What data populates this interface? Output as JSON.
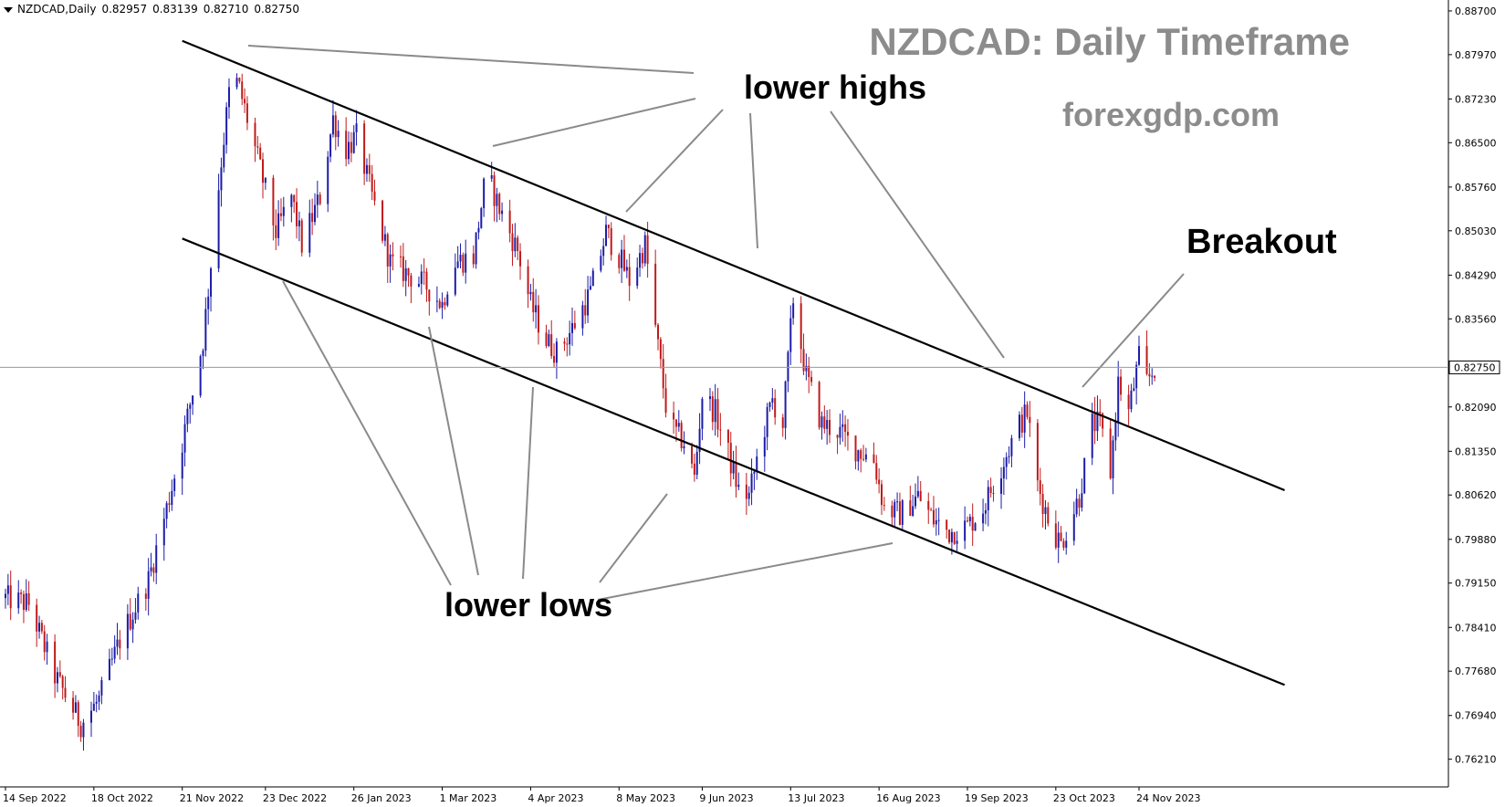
{
  "header": {
    "symbol": "NZDCAD,Daily",
    "open": "0.82957",
    "high": "0.83139",
    "low": "0.82710",
    "close": "0.82750"
  },
  "texts": {
    "title": "NZDCAD: Daily Timeframe",
    "site": "forexgdp.com",
    "lower_highs": "lower highs",
    "lower_lows": "lower lows",
    "breakout": "Breakout"
  },
  "colors": {
    "bull": "#1c1ca8",
    "bear": "#c01a1a",
    "channel": "#000000",
    "pointer": "#8a8a8a",
    "current_line": "#9a9a9a",
    "title_gray": "#8c8c8c"
  },
  "chart_data": {
    "type": "candlestick",
    "symbol": "NZDCAD",
    "timeframe": "Daily",
    "current_price": "0.82750",
    "y_ticks": [
      "0.88700",
      "0.87970",
      "0.87230",
      "0.86500",
      "0.85760",
      "0.85030",
      "0.84290",
      "0.83560",
      "0.82750",
      "0.82090",
      "0.81350",
      "0.80620",
      "0.79880",
      "0.79150",
      "0.78410",
      "0.77680",
      "0.76940",
      "0.76210"
    ],
    "ylim": [
      0.759,
      0.8876
    ],
    "x_ticks": [
      "14 Sep 2022",
      "18 Oct 2022",
      "21 Nov 2022",
      "23 Dec 2022",
      "26 Jan 2023",
      "1 Mar 2023",
      "4 Apr 2023",
      "8 May 2023",
      "9 Jun 2023",
      "13 Jul 2023",
      "16 Aug 2023",
      "19 Sep 2023",
      "23 Oct 2023",
      "24 Nov 2023"
    ],
    "channel_upper": [
      {
        "date": "2022-11-21",
        "price": 0.882
      },
      {
        "date": "2024-01-19",
        "price": 0.807
      }
    ],
    "channel_lower": [
      {
        "date": "2022-11-21",
        "price": 0.849
      },
      {
        "date": "2024-01-19",
        "price": 0.7745
      }
    ],
    "price_path": [
      [
        "2022-09-14",
        0.789
      ],
      [
        "2022-09-23",
        0.788
      ],
      [
        "2022-10-03",
        0.776
      ],
      [
        "2022-10-13",
        0.768
      ],
      [
        "2022-10-20",
        0.772
      ],
      [
        "2022-10-28",
        0.782
      ],
      [
        "2022-11-08",
        0.792
      ],
      [
        "2022-11-15",
        0.804
      ],
      [
        "2022-11-21",
        0.815
      ],
      [
        "2022-11-29",
        0.832
      ],
      [
        "2022-12-06",
        0.862
      ],
      [
        "2022-12-10",
        0.877
      ],
      [
        "2022-12-13",
        0.874
      ],
      [
        "2022-12-19",
        0.864
      ],
      [
        "2022-12-27",
        0.85
      ],
      [
        "2023-01-02",
        0.856
      ],
      [
        "2023-01-06",
        0.848
      ],
      [
        "2023-01-13",
        0.856
      ],
      [
        "2023-01-18",
        0.869
      ],
      [
        "2023-01-23",
        0.864
      ],
      [
        "2023-01-27",
        0.866
      ],
      [
        "2023-02-02",
        0.856
      ],
      [
        "2023-02-09",
        0.845
      ],
      [
        "2023-02-16",
        0.843
      ],
      [
        "2023-02-23",
        0.841
      ],
      [
        "2023-03-01",
        0.838
      ],
      [
        "2023-03-05",
        0.845
      ],
      [
        "2023-03-13",
        0.846
      ],
      [
        "2023-03-18",
        0.86
      ],
      [
        "2023-03-23",
        0.854
      ],
      [
        "2023-03-30",
        0.847
      ],
      [
        "2023-04-04",
        0.838
      ],
      [
        "2023-04-10",
        0.832
      ],
      [
        "2023-04-14",
        0.83
      ],
      [
        "2023-04-20",
        0.834
      ],
      [
        "2023-04-27",
        0.84
      ],
      [
        "2023-05-03",
        0.85
      ],
      [
        "2023-05-08",
        0.846
      ],
      [
        "2023-05-12",
        0.842
      ],
      [
        "2023-05-18",
        0.848
      ],
      [
        "2023-05-22",
        0.834
      ],
      [
        "2023-05-27",
        0.818
      ],
      [
        "2023-06-02",
        0.815
      ],
      [
        "2023-06-06",
        0.809
      ],
      [
        "2023-06-09",
        0.823
      ],
      [
        "2023-06-14",
        0.82
      ],
      [
        "2023-06-19",
        0.813
      ],
      [
        "2023-06-23",
        0.807
      ],
      [
        "2023-06-27",
        0.806
      ],
      [
        "2023-07-02",
        0.816
      ],
      [
        "2023-07-06",
        0.822
      ],
      [
        "2023-07-10",
        0.818
      ],
      [
        "2023-07-14",
        0.839
      ],
      [
        "2023-07-19",
        0.826
      ],
      [
        "2023-07-25",
        0.818
      ],
      [
        "2023-07-31",
        0.817
      ],
      [
        "2023-08-07",
        0.814
      ],
      [
        "2023-08-14",
        0.812
      ],
      [
        "2023-08-18",
        0.804
      ],
      [
        "2023-08-24",
        0.803
      ],
      [
        "2023-08-31",
        0.806
      ],
      [
        "2023-09-06",
        0.802
      ],
      [
        "2023-09-12",
        0.8
      ],
      [
        "2023-09-19",
        0.801
      ],
      [
        "2023-09-25",
        0.804
      ],
      [
        "2023-10-02",
        0.811
      ],
      [
        "2023-10-09",
        0.818
      ],
      [
        "2023-10-12",
        0.82
      ],
      [
        "2023-10-16",
        0.808
      ],
      [
        "2023-10-21",
        0.801
      ],
      [
        "2023-10-25",
        0.798
      ],
      [
        "2023-11-01",
        0.806
      ],
      [
        "2023-11-06",
        0.818
      ],
      [
        "2023-11-09",
        0.818
      ],
      [
        "2023-11-13",
        0.81
      ],
      [
        "2023-11-16",
        0.825
      ],
      [
        "2023-11-20",
        0.82
      ],
      [
        "2023-11-24",
        0.829
      ],
      [
        "2023-11-27",
        0.825
      ],
      [
        "2023-11-30",
        0.8275
      ]
    ]
  }
}
